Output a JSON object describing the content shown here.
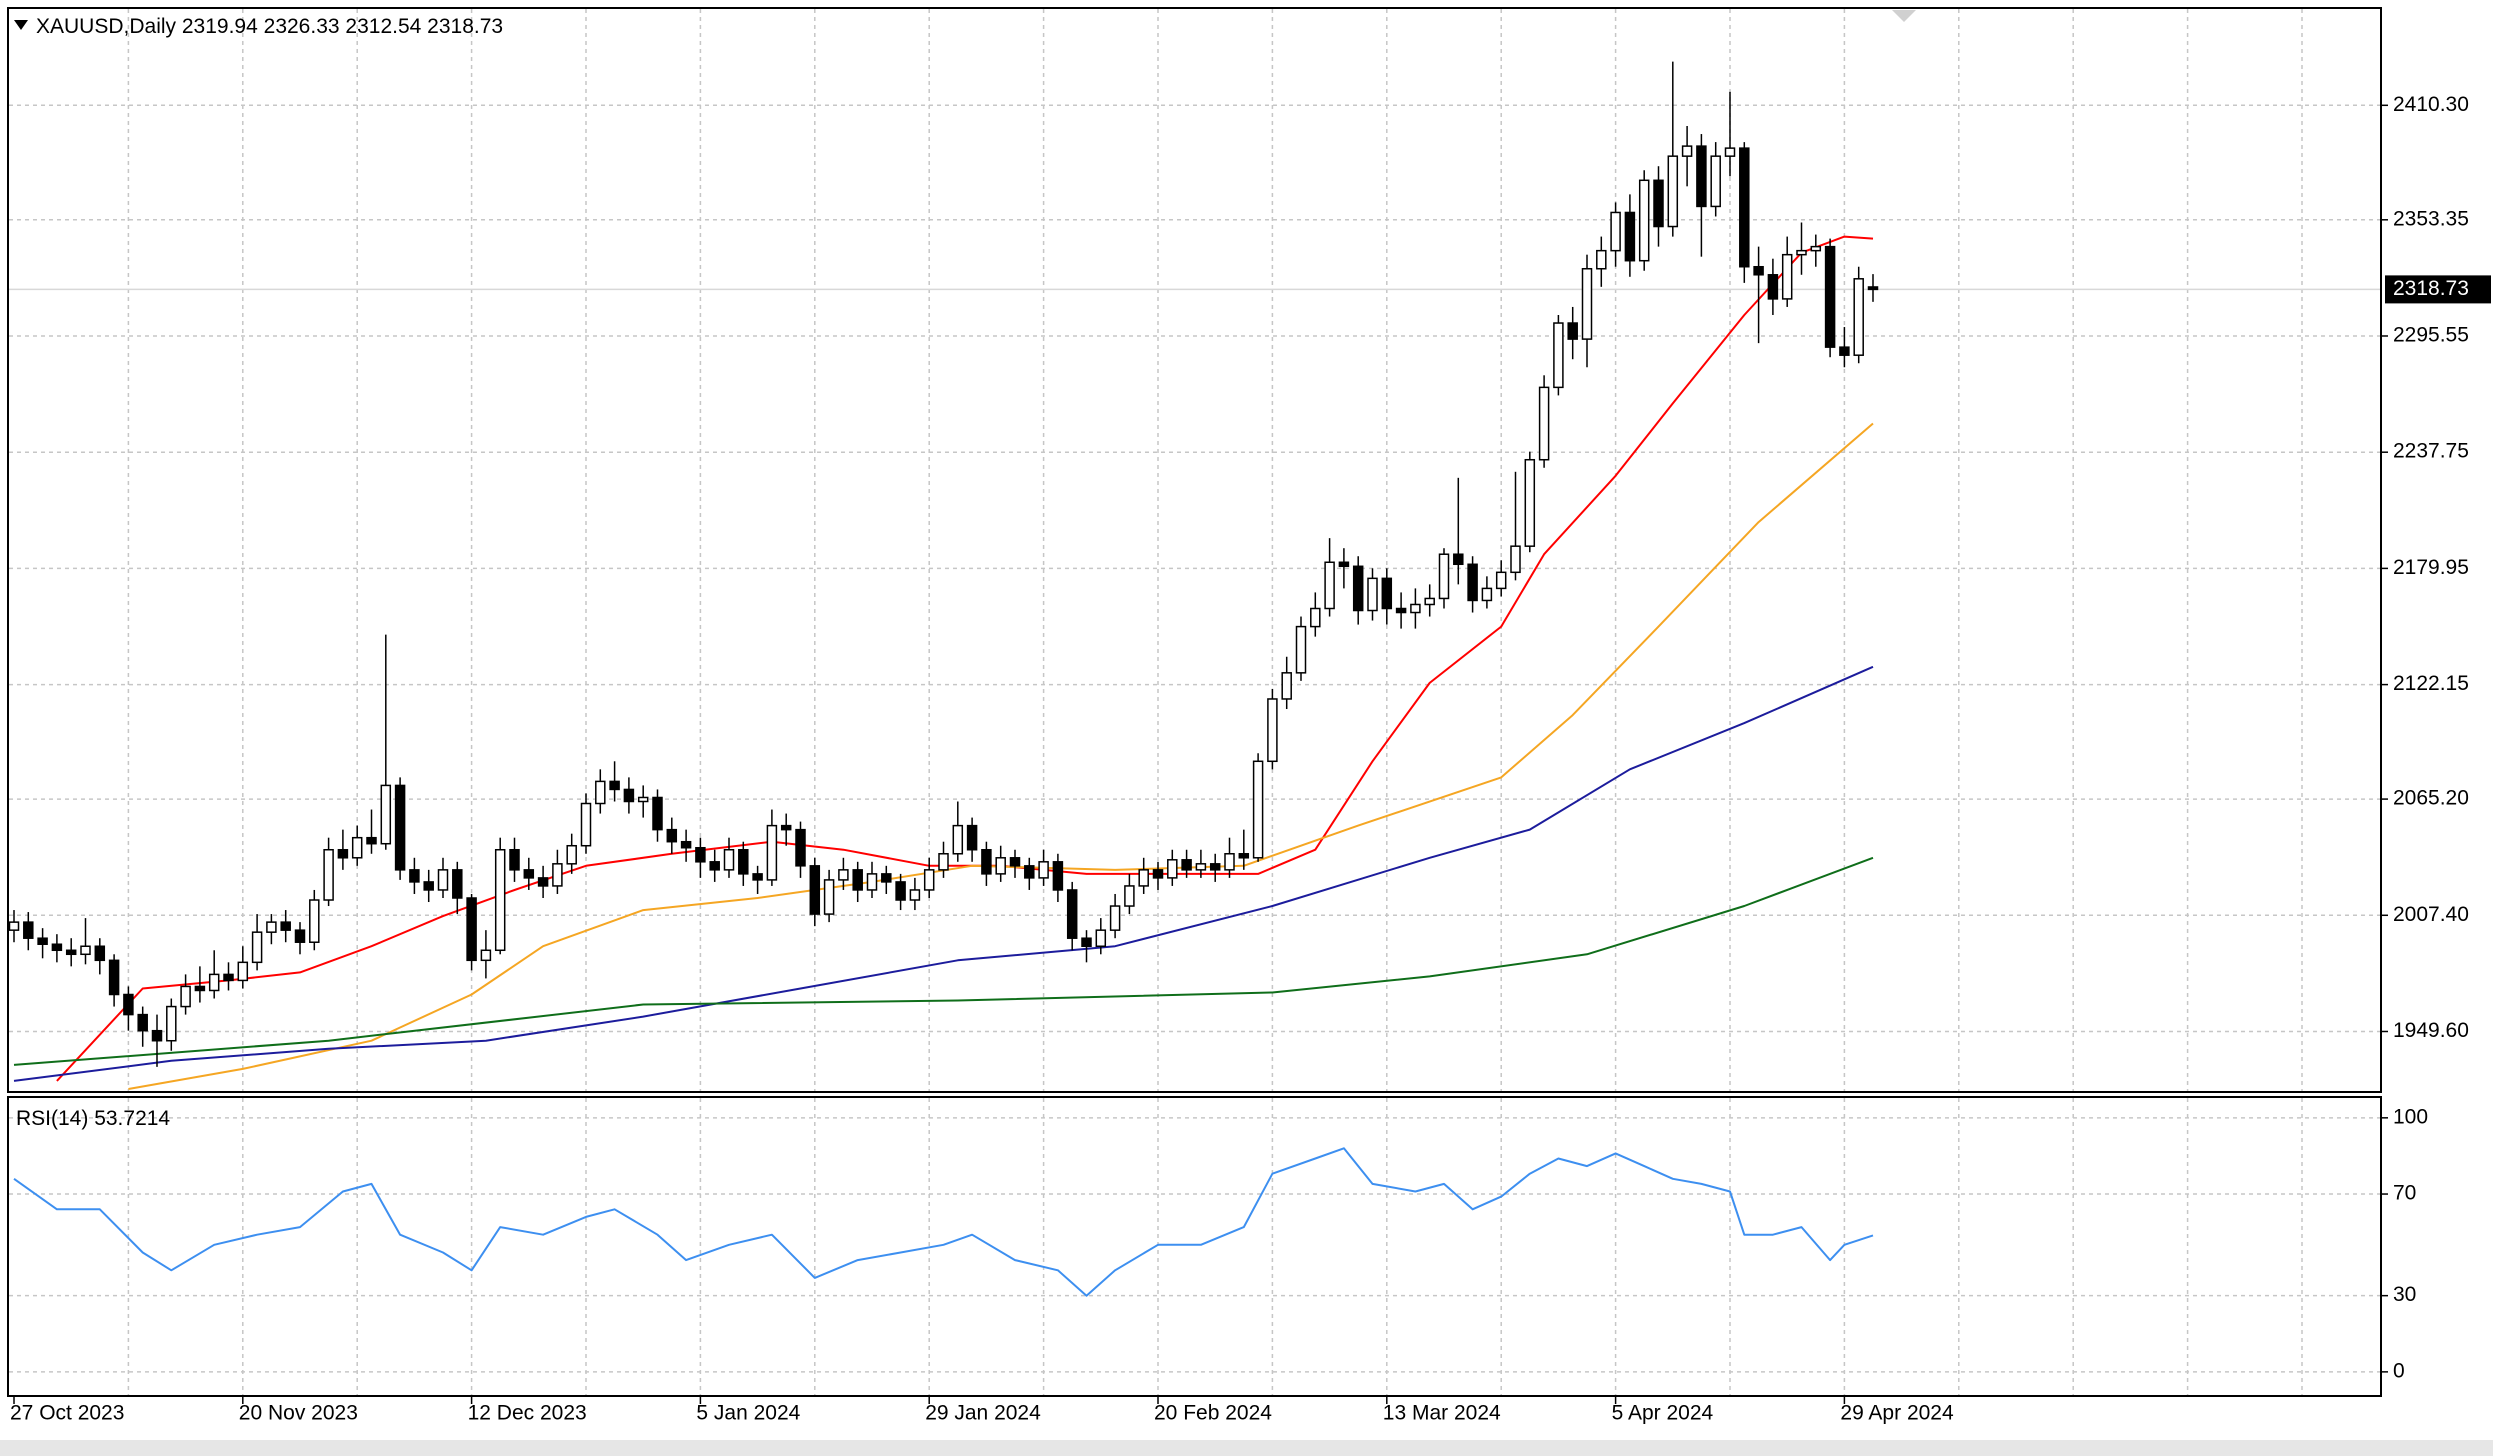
{
  "chart_data": [
    {
      "type": "candlestick",
      "symbol": "XAUUSD,Daily",
      "categories": [
        "27 Oct 2023",
        null,
        null,
        null,
        null,
        null,
        null,
        null,
        null,
        null,
        null,
        null,
        null,
        null,
        null,
        null,
        "20 Nov 2023",
        null,
        null,
        null,
        null,
        null,
        null,
        null,
        null,
        null,
        null,
        null,
        null,
        null,
        null,
        null,
        "12 Dec 2023",
        null,
        null,
        null,
        null,
        null,
        null,
        null,
        null,
        null,
        null,
        null,
        null,
        null,
        null,
        null,
        "5 Jan 2024",
        null,
        null,
        null,
        null,
        null,
        null,
        null,
        null,
        null,
        null,
        null,
        null,
        null,
        null,
        null,
        "29 Jan 2024",
        null,
        null,
        null,
        null,
        null,
        null,
        null,
        null,
        null,
        null,
        null,
        null,
        null,
        null,
        null,
        "20 Feb 2024",
        null,
        null,
        null,
        null,
        null,
        null,
        null,
        null,
        null,
        null,
        null,
        null,
        null,
        null,
        null,
        "13 Mar 2024",
        null,
        null,
        null,
        null,
        null,
        null,
        null,
        null,
        null,
        null,
        null,
        null,
        null,
        null,
        null,
        "5 Apr 2024",
        null,
        null,
        null,
        null,
        null,
        null,
        null,
        null,
        null,
        null,
        null,
        null,
        null,
        null,
        null,
        "29 Apr 2024",
        null,
        null
      ],
      "open": [
        2000,
        2004,
        1996,
        1993,
        1990,
        1988,
        1992,
        1985,
        1968,
        1958,
        1950,
        1945,
        1962,
        1972,
        1970,
        1978,
        1975,
        1984,
        1999,
        2004,
        2000,
        1994,
        2015,
        2040,
        2036,
        2046,
        2043,
        2072,
        2030,
        2024,
        2020,
        2030,
        2016,
        1985,
        1990,
        2040,
        2030,
        2026,
        2022,
        2033,
        2042,
        2063,
        2074,
        2070,
        2064,
        2066,
        2050,
        2044,
        2041,
        2034,
        2030,
        2040,
        2028,
        2025,
        2052,
        2050,
        2032,
        2008,
        2025,
        2030,
        2020,
        2028,
        2024,
        2015,
        2020,
        2030,
        2038,
        2052,
        2040,
        2028,
        2036,
        2032,
        2026,
        2034,
        2020,
        1996,
        1992,
        2000,
        2012,
        2022,
        2030,
        2026,
        2035,
        2030,
        2033,
        2030,
        2038,
        2036,
        2084,
        2115,
        2128,
        2151,
        2160,
        2183,
        2181,
        2159,
        2175,
        2160,
        2158,
        2162,
        2165,
        2187,
        2182,
        2164,
        2170,
        2178,
        2191,
        2234,
        2270,
        2302,
        2294,
        2329,
        2338,
        2357,
        2333,
        2373,
        2350,
        2385,
        2390,
        2360,
        2385,
        2389,
        2330,
        2326,
        2314,
        2336,
        2338,
        2340,
        2290,
        2286,
        2319.94
      ],
      "high": [
        2010,
        2009,
        2001,
        1998,
        1996,
        2006,
        1996,
        1988,
        1972,
        1962,
        1958,
        1966,
        1978,
        1982,
        1990,
        1984,
        1992,
        2008,
        2008,
        2010,
        2004,
        2020,
        2046,
        2050,
        2052,
        2060,
        2147,
        2076,
        2036,
        2030,
        2036,
        2034,
        2018,
        2000,
        2046,
        2046,
        2036,
        2032,
        2040,
        2048,
        2068,
        2080,
        2084,
        2076,
        2072,
        2070,
        2056,
        2050,
        2046,
        2040,
        2046,
        2044,
        2032,
        2060,
        2058,
        2054,
        2036,
        2030,
        2036,
        2034,
        2034,
        2032,
        2028,
        2026,
        2036,
        2044,
        2064,
        2056,
        2044,
        2042,
        2040,
        2036,
        2040,
        2038,
        2024,
        2000,
        2006,
        2018,
        2028,
        2036,
        2034,
        2040,
        2040,
        2040,
        2038,
        2046,
        2050,
        2088,
        2120,
        2136,
        2156,
        2168,
        2195,
        2190,
        2186,
        2180,
        2180,
        2168,
        2170,
        2172,
        2190,
        2225,
        2186,
        2176,
        2184,
        2228,
        2238,
        2276,
        2306,
        2310,
        2336,
        2345,
        2362,
        2366,
        2378,
        2380,
        2432,
        2400,
        2396,
        2392,
        2417,
        2392,
        2340,
        2334,
        2345,
        2352,
        2346,
        2344,
        2300,
        2330,
        2326.33
      ],
      "low": [
        1994,
        1990,
        1986,
        1984,
        1982,
        1983,
        1978,
        1962,
        1950,
        1942,
        1932,
        1940,
        1958,
        1964,
        1966,
        1970,
        1971,
        1980,
        1993,
        1994,
        1988,
        1990,
        2012,
        2030,
        2032,
        2038,
        2040,
        2025,
        2018,
        2014,
        2016,
        2008,
        1980,
        1976,
        1988,
        2024,
        2020,
        2016,
        2018,
        2028,
        2038,
        2058,
        2064,
        2058,
        2056,
        2044,
        2038,
        2034,
        2026,
        2024,
        2026,
        2022,
        2018,
        2022,
        2042,
        2026,
        2002,
        2004,
        2020,
        2014,
        2016,
        2018,
        2010,
        2010,
        2016,
        2026,
        2034,
        2034,
        2022,
        2024,
        2026,
        2020,
        2022,
        2014,
        1990,
        1984,
        1988,
        1996,
        2008,
        2018,
        2020,
        2022,
        2026,
        2026,
        2024,
        2026,
        2030,
        2034,
        2080,
        2110,
        2124,
        2146,
        2156,
        2170,
        2152,
        2154,
        2152,
        2150,
        2150,
        2156,
        2160,
        2172,
        2158,
        2160,
        2166,
        2174,
        2188,
        2230,
        2266,
        2284,
        2280,
        2320,
        2330,
        2325,
        2328,
        2340,
        2345,
        2370,
        2335,
        2355,
        2375,
        2322,
        2292,
        2306,
        2310,
        2326,
        2330,
        2285,
        2280,
        2282,
        2312.54
      ],
      "close": [
        2004,
        1996,
        1993,
        1990,
        1988,
        1992,
        1985,
        1968,
        1958,
        1950,
        1945,
        1962,
        1972,
        1970,
        1978,
        1975,
        1984,
        1999,
        2004,
        2000,
        1994,
        2015,
        2040,
        2036,
        2046,
        2043,
        2072,
        2030,
        2024,
        2020,
        2030,
        2016,
        1985,
        1990,
        2040,
        2030,
        2026,
        2022,
        2033,
        2042,
        2063,
        2074,
        2070,
        2064,
        2066,
        2050,
        2044,
        2041,
        2034,
        2030,
        2040,
        2028,
        2025,
        2052,
        2050,
        2032,
        2008,
        2025,
        2030,
        2020,
        2028,
        2024,
        2015,
        2020,
        2030,
        2038,
        2052,
        2040,
        2028,
        2036,
        2032,
        2026,
        2034,
        2020,
        1996,
        1992,
        2000,
        2012,
        2022,
        2030,
        2026,
        2035,
        2030,
        2033,
        2030,
        2038,
        2036,
        2084,
        2115,
        2128,
        2151,
        2160,
        2183,
        2181,
        2159,
        2175,
        2160,
        2158,
        2162,
        2165,
        2187,
        2182,
        2164,
        2170,
        2178,
        2191,
        2234,
        2270,
        2302,
        2294,
        2329,
        2338,
        2357,
        2333,
        2373,
        2350,
        2385,
        2390,
        2360,
        2385,
        2389,
        2330,
        2326,
        2314,
        2336,
        2338,
        2340,
        2290,
        2286,
        2324,
        2318.73
      ],
      "series": [
        {
          "color": "#ff0000",
          "x": [
            3,
            9,
            15,
            20,
            25,
            30,
            35,
            40,
            46,
            53,
            58,
            64,
            69,
            75,
            81,
            87,
            91,
            95,
            99,
            104,
            107,
            112,
            116,
            121,
            125,
            128,
            130
          ],
          "values": [
            1925,
            1971,
            1975,
            1979,
            1992,
            2007,
            2020,
            2032,
            2038,
            2044,
            2040,
            2032,
            2032,
            2028,
            2028,
            2028,
            2040,
            2084,
            2123,
            2151,
            2187,
            2226,
            2262,
            2306,
            2337,
            2345,
            2344
          ]
        },
        {
          "color": "#f5a623",
          "x": [
            8,
            16,
            25,
            32,
            37,
            44,
            52,
            60,
            67,
            77,
            86,
            94,
            104,
            109,
            115,
            122,
            130
          ],
          "values": [
            1921,
            1931,
            1945,
            1968,
            1992,
            2010,
            2016,
            2024,
            2032,
            2030,
            2032,
            2052,
            2076,
            2107,
            2151,
            2203,
            2252
          ]
        },
        {
          "color": "#1c1c9c",
          "x": [
            0,
            11,
            22,
            33,
            44,
            55,
            66,
            77,
            88,
            99,
            106,
            113,
            121,
            130
          ],
          "values": [
            1925,
            1935,
            1941,
            1945,
            1957,
            1971,
            1985,
            1992,
            2012,
            2036,
            2050,
            2080,
            2103,
            2131
          ]
        },
        {
          "color": "#0f6e1a",
          "x": [
            0,
            22,
            44,
            66,
            88,
            99,
            110,
            121,
            130
          ],
          "values": [
            1933,
            1945,
            1963,
            1965,
            1969,
            1977,
            1988,
            2012,
            2036
          ]
        }
      ],
      "ylim": [
        1919.5,
        2458.7
      ],
      "yticks": [
        {
          "value": 1949.6,
          "label": "1949.60"
        },
        {
          "value": 2007.4,
          "label": "2007.40"
        },
        {
          "value": 2065.2,
          "label": "2065.20"
        },
        {
          "value": 2122.15,
          "label": "2122.15"
        },
        {
          "value": 2179.95,
          "label": "2179.95"
        },
        {
          "value": 2237.75,
          "label": "2237.75"
        },
        {
          "value": 2295.55,
          "label": "2295.55"
        },
        {
          "value": 2353.35,
          "label": "2353.35"
        },
        {
          "value": 2410.3,
          "label": "2410.30"
        }
      ],
      "grid": true
    },
    {
      "type": "line",
      "title": "RSI(14)",
      "color": "#3d8ff0",
      "x": [
        0,
        3,
        6,
        9,
        11,
        14,
        17,
        20,
        23,
        25,
        27,
        30,
        32,
        34,
        37,
        40,
        42,
        45,
        47,
        50,
        53,
        56,
        59,
        62,
        65,
        67,
        70,
        73,
        75,
        77,
        80,
        83,
        86,
        88,
        91,
        93,
        95,
        98,
        100,
        102,
        104,
        106,
        108,
        110,
        112,
        114,
        116,
        118,
        120,
        121,
        123,
        125,
        127,
        128,
        130
      ],
      "values": [
        76,
        64,
        64,
        47,
        40,
        50,
        54,
        57,
        71,
        74,
        54,
        47,
        40,
        57,
        54,
        61,
        64,
        54,
        44,
        50,
        54,
        37,
        44,
        47,
        50,
        54,
        44,
        40,
        30,
        40,
        50,
        50,
        57,
        78,
        84,
        88,
        74,
        71,
        74,
        64,
        69,
        78,
        84,
        81,
        86,
        81,
        76,
        74,
        71,
        54,
        54,
        57,
        44,
        50,
        53.7214
      ],
      "ylim": [
        -9.5,
        108.2
      ],
      "yticks": [
        0,
        30,
        70,
        100
      ],
      "grid": true
    }
  ]
}
